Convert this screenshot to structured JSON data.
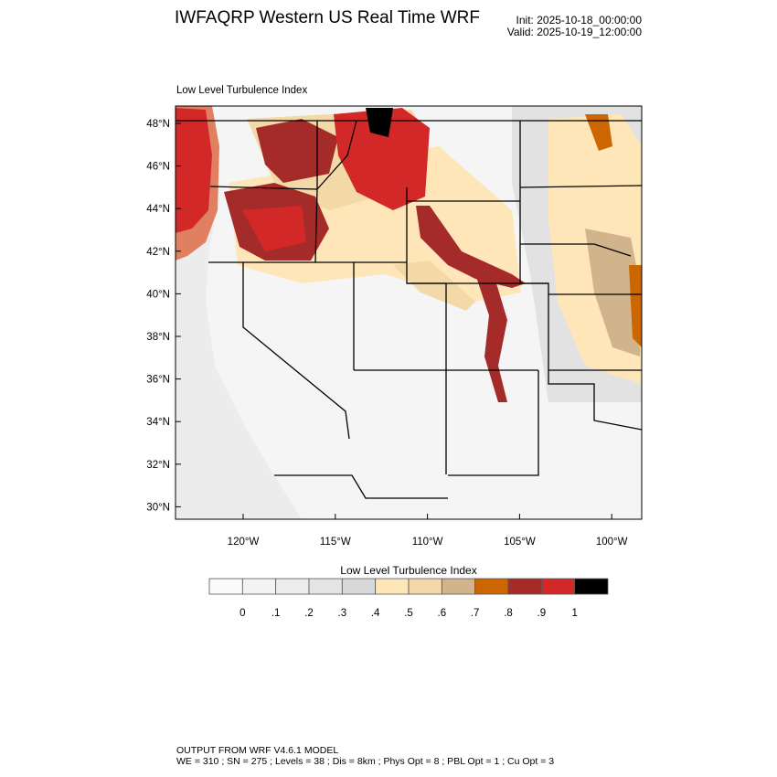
{
  "header": {
    "title": "IWFAQRP Western US Real Time WRF",
    "init": "Init: 2025-10-18_00:00:00",
    "valid": "Valid: 2025-10-19_12:00:00"
  },
  "map": {
    "subtitle": "Low Level Turbulence Index",
    "lat_labels": [
      "48°N",
      "46°N",
      "44°N",
      "42°N",
      "40°N",
      "38°N",
      "36°N",
      "34°N",
      "32°N",
      "30°N"
    ],
    "lon_labels": [
      "120°W",
      "115°W",
      "110°W",
      "105°W",
      "100°W"
    ],
    "projection": "Lambert conformal, Western US"
  },
  "colorbar": {
    "title": "Low Level Turbulence Index",
    "labels": [
      "0",
      ".1",
      ".2",
      ".3",
      ".4",
      ".5",
      ".6",
      ".7",
      ".8",
      ".9",
      "1"
    ],
    "colors": [
      "#fafafa",
      "#f3f3f3",
      "#ededed",
      "#e4e4e4",
      "#d8d8d8",
      "#fee6b8",
      "#f4d9a8",
      "#d2b48c",
      "#cc6600",
      "#a52a2a",
      "#d22828",
      "#000000"
    ]
  },
  "footer": {
    "line1": "OUTPUT FROM WRF V4.6.1 MODEL",
    "line2": "WE = 310 ; SN = 275 ; Levels = 38 ; Dis = 8km ; Phys Opt = 8 ; PBL Opt = 1 ; Cu Opt = 3"
  }
}
